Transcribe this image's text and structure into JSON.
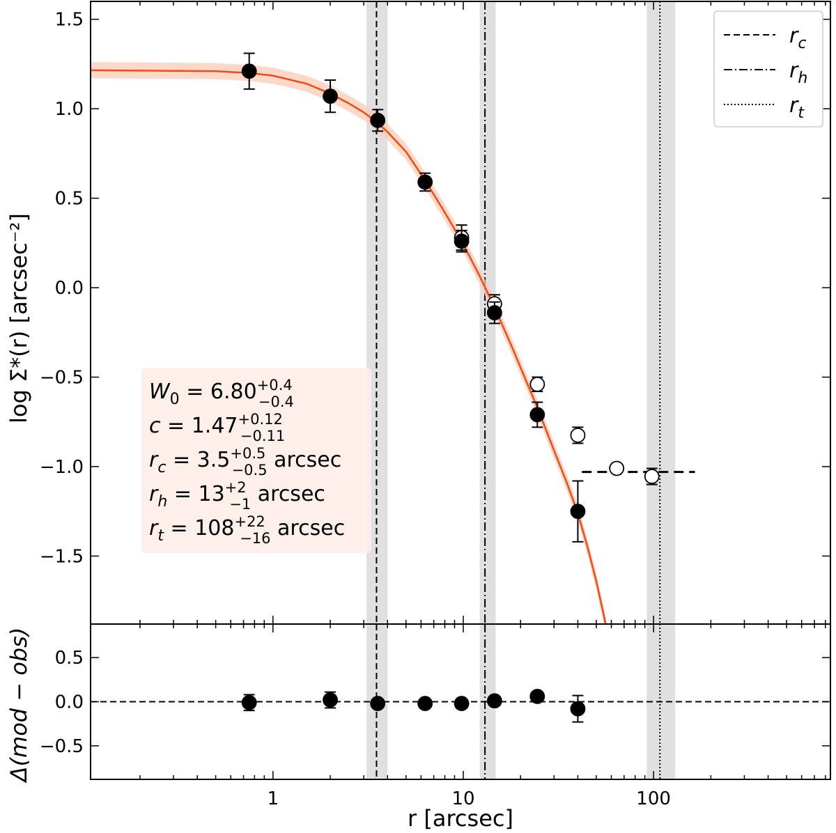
{
  "chart_data": {
    "type": "scatter",
    "title": "",
    "top_panel": {
      "ylabel": "log Σ*(r)  [arcsec⁻²]",
      "ylim": [
        -1.88,
        1.6
      ],
      "yticks": [
        1.5,
        1.0,
        0.5,
        0.0,
        -0.5,
        -1.0,
        -1.5
      ],
      "ytick_labels": [
        "1.5",
        "1.0",
        "0.5",
        "0.0",
        "−0.5",
        "−1.0",
        "−1.5"
      ],
      "filled_points": [
        {
          "r": 0.75,
          "y": 1.21,
          "err": 0.1
        },
        {
          "r": 2.0,
          "y": 1.07,
          "err": 0.09
        },
        {
          "r": 3.55,
          "y": 0.935,
          "err": 0.06
        },
        {
          "r": 6.3,
          "y": 0.59,
          "err": 0.05
        },
        {
          "r": 9.8,
          "y": 0.26,
          "err": 0.06
        },
        {
          "r": 14.6,
          "y": -0.14,
          "err": 0.06
        },
        {
          "r": 24.5,
          "y": -0.71,
          "err": 0.07
        },
        {
          "r": 40.0,
          "y": -1.25,
          "err": 0.17
        }
      ],
      "open_points": [
        {
          "r": 9.8,
          "y": 0.28,
          "err": 0.07
        },
        {
          "r": 14.6,
          "y": -0.09,
          "err": 0.05
        },
        {
          "r": 24.5,
          "y": -0.54,
          "err": 0.04
        },
        {
          "r": 40.0,
          "y": -0.825,
          "err": 0.045
        },
        {
          "r": 64.0,
          "y": -1.01,
          "err": 0.02
        },
        {
          "r": 98.0,
          "y": -1.055,
          "err": 0.045
        }
      ],
      "background_level": {
        "y": -1.03,
        "r_from": 42,
        "r_to": 165
      },
      "model_curve": {
        "color": "#f04a16",
        "band_color": "#f9cbb6",
        "points": [
          [
            0.11,
            1.215
          ],
          [
            0.3,
            1.212
          ],
          [
            0.5,
            1.21
          ],
          [
            0.75,
            1.2
          ],
          [
            1.0,
            1.185
          ],
          [
            1.5,
            1.14
          ],
          [
            2.0,
            1.085
          ],
          [
            2.5,
            1.03
          ],
          [
            3.0,
            0.98
          ],
          [
            3.5,
            0.925
          ],
          [
            4.0,
            0.87
          ],
          [
            5.0,
            0.76
          ],
          [
            6.3,
            0.6
          ],
          [
            8.0,
            0.42
          ],
          [
            9.8,
            0.26
          ],
          [
            12.0,
            0.08
          ],
          [
            14.6,
            -0.11
          ],
          [
            18.0,
            -0.33
          ],
          [
            24.5,
            -0.67
          ],
          [
            30.0,
            -0.91
          ],
          [
            35.0,
            -1.09
          ],
          [
            40.0,
            -1.26
          ],
          [
            45.0,
            -1.45
          ],
          [
            50.0,
            -1.64
          ],
          [
            55.0,
            -1.84
          ],
          [
            57.0,
            -1.93
          ]
        ]
      }
    },
    "bottom_panel": {
      "ylabel": "Δ(mod − obs)",
      "ylim": [
        -0.88,
        0.88
      ],
      "yticks": [
        0.5,
        0.0,
        -0.5
      ],
      "ytick_labels": [
        "0.5",
        "0.0",
        "−0.5"
      ],
      "points": [
        {
          "r": 0.75,
          "y": -0.01,
          "err": 0.09
        },
        {
          "r": 2.0,
          "y": 0.02,
          "err": 0.09
        },
        {
          "r": 3.55,
          "y": -0.02,
          "err": 0.04
        },
        {
          "r": 6.3,
          "y": -0.02,
          "err": 0.04
        },
        {
          "r": 9.8,
          "y": -0.02,
          "err": 0.05
        },
        {
          "r": 14.6,
          "y": 0.01,
          "err": 0.04
        },
        {
          "r": 24.5,
          "y": 0.06,
          "err": 0.05
        },
        {
          "r": 40.0,
          "y": -0.08,
          "err": 0.15
        }
      ]
    },
    "x_axis": {
      "scale": "log",
      "xlim": [
        0.11,
        850
      ],
      "xlabel": "r  [arcsec]",
      "major_ticks": [
        1,
        10,
        100
      ],
      "major_tick_labels": [
        "1",
        "10",
        "100"
      ]
    },
    "vertical_lines": [
      {
        "name": "r_c",
        "r": 3.5,
        "band": [
          3.1,
          4.0
        ],
        "style": "dashed"
      },
      {
        "name": "r_h",
        "r": 13.0,
        "band": [
          12.2,
          14.8
        ],
        "style": "dashdot"
      },
      {
        "name": "r_t",
        "r": 108.0,
        "band": [
          92,
          130
        ],
        "style": "dotted"
      }
    ],
    "legend": {
      "position": "top-right",
      "entries": [
        {
          "style": "dashed",
          "base": "r",
          "sub": "c"
        },
        {
          "style": "dashdot",
          "base": "r",
          "sub": "h"
        },
        {
          "style": "dotted",
          "base": "r",
          "sub": "t"
        }
      ]
    },
    "annotation": {
      "position": "lower-left",
      "lines": [
        {
          "lhs": "W",
          "lhs_sub": "0",
          "value": "6.80",
          "sup": "+0.4",
          "sub": "−0.4",
          "unit": ""
        },
        {
          "lhs": "c",
          "lhs_sub": "",
          "value": "1.47",
          "sup": "+0.12",
          "sub": "−0.11",
          "unit": ""
        },
        {
          "lhs": "r",
          "lhs_sub": "c",
          "value": "3.5",
          "sup": "+0.5",
          "sub": "−0.5",
          "unit": "arcsec"
        },
        {
          "lhs": "r",
          "lhs_sub": "h",
          "value": "13",
          "sup": "+2",
          "sub": "−1",
          "unit": "arcsec"
        },
        {
          "lhs": "r",
          "lhs_sub": "t",
          "value": "108",
          "sup": "+22",
          "sub": "−16",
          "unit": "arcsec"
        }
      ]
    }
  }
}
